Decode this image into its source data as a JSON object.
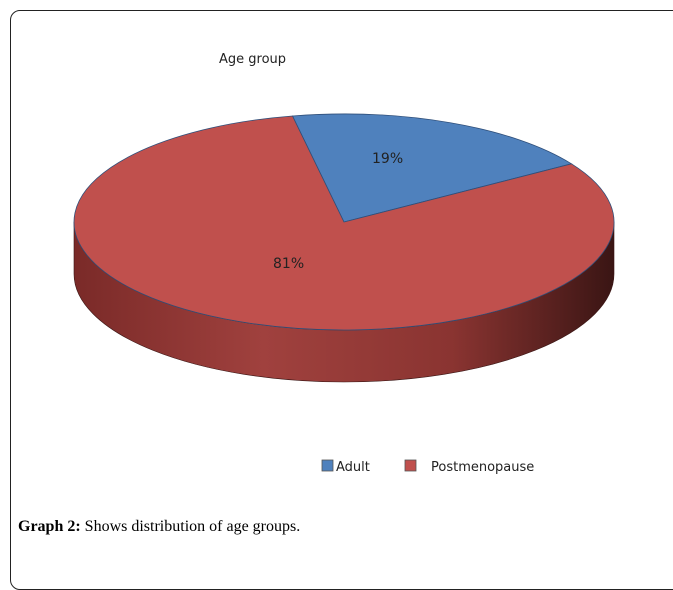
{
  "chart_data": {
    "type": "pie",
    "title": "Age group",
    "categories": [
      "Adult",
      "Postmenopause"
    ],
    "values": [
      19,
      81
    ],
    "labels": [
      "19%",
      "81%"
    ],
    "colors": [
      "#4F81BD",
      "#C0504D"
    ],
    "style": "3d",
    "legend_position": "bottom-right"
  },
  "caption": {
    "label": "Graph 2:",
    "text": " Shows distribution of age groups."
  }
}
